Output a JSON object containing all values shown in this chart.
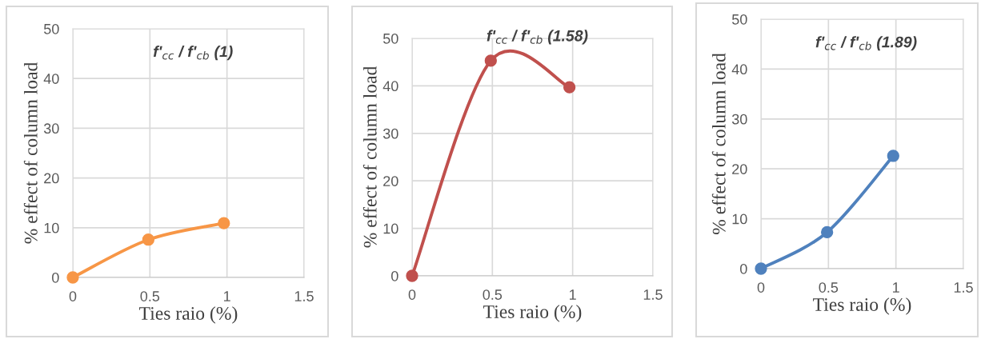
{
  "chart_data": [
    {
      "type": "line",
      "title": "f'$_{cc}$ / f'$_{cb}$ (1)",
      "xlabel": "Ties raio (%)",
      "ylabel": "% effect of column load",
      "x": [
        0,
        0.49,
        0.98
      ],
      "series": [
        {
          "color": "#f79646",
          "values": [
            0,
            7.6,
            10.9
          ]
        }
      ],
      "xlim": [
        0,
        1.5
      ],
      "xticks": [
        0,
        0.5,
        1,
        1.5
      ],
      "ylim": [
        0,
        50
      ],
      "yticks": [
        0,
        10,
        20,
        30,
        40,
        50
      ],
      "grid": true,
      "marker": "circle",
      "line_style": "solid",
      "legend": false
    },
    {
      "type": "line",
      "title": "f'$_{cc}$ / f'$_{cb}$ (1.58)",
      "xlabel": "Ties raio (%)",
      "ylabel": "% effect of column load",
      "x": [
        0,
        0.49,
        0.98
      ],
      "series": [
        {
          "color": "#c0504d",
          "values": [
            0,
            45.3,
            39.7
          ]
        }
      ],
      "xlim": [
        0,
        1.5
      ],
      "xticks": [
        0,
        0.5,
        1,
        1.5
      ],
      "ylim": [
        0,
        50
      ],
      "yticks": [
        0,
        10,
        20,
        30,
        40,
        50
      ],
      "grid": true,
      "marker": "circle",
      "line_style": "solid",
      "legend": false
    },
    {
      "type": "line",
      "title": "f'$_{cc}$ / f'$_{cb}$ (1.89)",
      "xlabel": "Ties raio (%)",
      "ylabel": "% effect of column load",
      "x": [
        0,
        0.49,
        0.98
      ],
      "series": [
        {
          "color": "#4f81bd",
          "values": [
            0,
            7.3,
            22.6
          ]
        }
      ],
      "xlim": [
        0,
        1.5
      ],
      "xticks": [
        0,
        0.5,
        1,
        1.5
      ],
      "ylim": [
        0,
        50
      ],
      "yticks": [
        0,
        10,
        20,
        30,
        40,
        50
      ],
      "grid": true,
      "marker": "circle",
      "line_style": "solid",
      "legend": false
    }
  ]
}
